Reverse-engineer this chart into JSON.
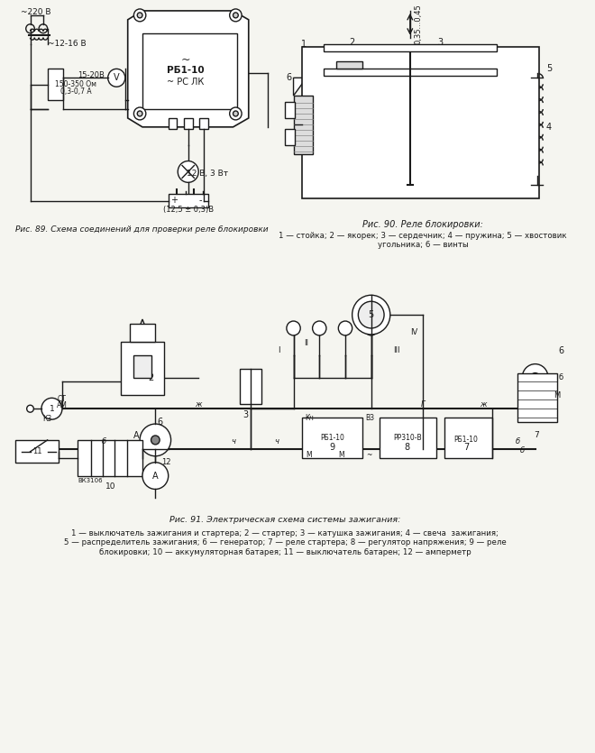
{
  "bg_color": "#f5f5f0",
  "line_color": "#1a1a1a",
  "title_fig89": "Рис. 89. Схема соединений для проверки реле блокировки",
  "title_fig90": "Рис. 90. Реле блокировки:",
  "caption_fig90": "1 — стойка; 2 — якорек; 3 — сердечник; 4 — пружина; 5 — хвостовик\nугольника; 6 — винты",
  "title_fig91": "Рис. 91. Электрическая схема системы зажигания:",
  "caption_fig91": "1 — выключатель зажигания и стартера; 2 — стартер; 3 — катушка зажигания; 4 — свеча  зажигания;\n5 — распределитель зажигания; 6 — генератор; 7 — реле стартера; 8 — регулятор напряжения; 9 — реле\nблокировки; 10 — аккумуляторная батарея; 11 — выключатель батарен; 12 — амперметр"
}
